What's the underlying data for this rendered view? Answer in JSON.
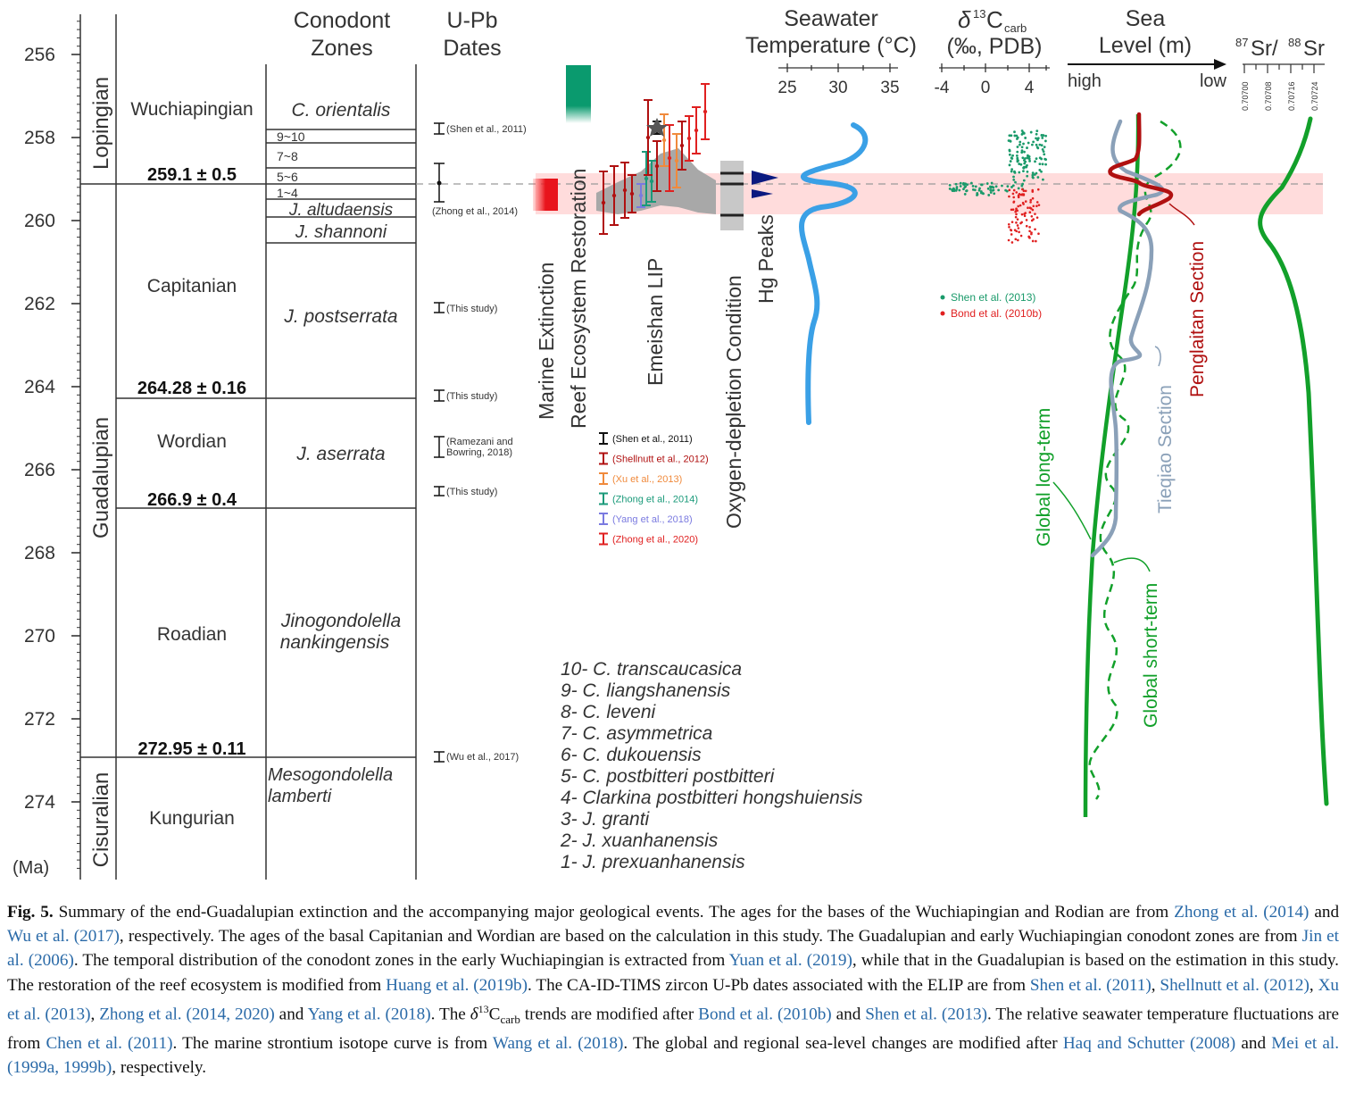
{
  "axis": {
    "unit": "(Ma)",
    "ticks": [
      "256",
      "258",
      "260",
      "262",
      "264",
      "266",
      "268",
      "270",
      "272",
      "274"
    ]
  },
  "epochs": [
    "Lopingian",
    "Guadalupian",
    "Cisuralian"
  ],
  "stages": [
    "Wuchiapingian",
    "Capitanian",
    "Wordian",
    "Roadian",
    "Kungurian"
  ],
  "boundary_ages": [
    "259.1 ± 0.5",
    "264.28 ± 0.16",
    "266.9 ± 0.4",
    "272.95 ± 0.11"
  ],
  "headers": {
    "conodont_line1": "Conodont",
    "conodont_line2": "Zones",
    "upb_line1": "U-Pb",
    "upb_line2": "Dates",
    "temp_line1": "Seawater",
    "temp_line2": "Temperature (°C)",
    "d13c_delta": "δ",
    "d13c_13": "13",
    "d13c_C": "C",
    "d13c_sub": "carb",
    "d13c_line2": "(‰, PDB)",
    "sea_line1": "Sea",
    "sea_line2": "Level (m)",
    "sea_high": "high",
    "sea_low": "low",
    "sr_87": "87",
    "sr_Sr1": "Sr/",
    "sr_88": "88",
    "sr_Sr2": "Sr"
  },
  "conodont_zones": {
    "orientalis": "C. orientalis",
    "z9_10": "9~10",
    "z7_8": "7~8",
    "z5_6": "5~6",
    "z1_4": "1~4",
    "altudaensis": "J. altudaensis",
    "shannoni": "J. shannoni",
    "postserrata": "J. postserrata",
    "aserrata": "J. aserrata",
    "jino1": "Jinogondolella",
    "jino2": "nankingensis",
    "meso1": "Mesogondolella",
    "meso2": "lamberti"
  },
  "upb_dates": {
    "shen2011": "(Shen et al., 2011)",
    "zhong2014": "(Zhong et al., 2014)",
    "this1": "(This study)",
    "this2": "(This study)",
    "ramezani1": "(Ramezani and",
    "ramezani2": "Bowring, 2018)",
    "this3": "(This study)",
    "wu2017": "(Wu et al., 2017)"
  },
  "columns": {
    "marine_extinction": "Marine Extinction",
    "reef": "Reef Ecosystem Restoration",
    "elip": "Emeishan LIP",
    "oxygen": "Oxygen-depletion Condition",
    "hg": "Hg Peaks"
  },
  "elip_legend": [
    {
      "label": "(Shen et al., 2011)",
      "color": "#111111"
    },
    {
      "label": "(Shellnutt et al., 2012)",
      "color": "#b01010"
    },
    {
      "label": "(Xu et al., 2013)",
      "color": "#f08a3c"
    },
    {
      "label": "(Zhong et al., 2014)",
      "color": "#1a9a7a"
    },
    {
      "label": "(Yang et al., 2018)",
      "color": "#7a7ae0"
    },
    {
      "label": "(Zhong et al., 2020)",
      "color": "#e02020"
    }
  ],
  "temp_ticks": [
    "25",
    "30",
    "35"
  ],
  "d13c_ticks": [
    "-4",
    "0",
    "4"
  ],
  "sr_ticks": [
    "0.70700",
    "0.70708",
    "0.70716",
    "0.70724"
  ],
  "d13c_legend": {
    "shen": "Shen et al. (2013)",
    "bond": "Bond et al. (2010b)"
  },
  "sea_labels": {
    "penglaitan": "Penglaitan Section",
    "tieqiao": "Tieqiao Section",
    "long_term": "Global long-term",
    "short_term": "Global short-term"
  },
  "zone_key": [
    "10- C. transcaucasica",
    "9- C. liangshanensis",
    "8- C. leveni",
    "7- C. asymmetrica",
    "6- C. dukouensis",
    "5- C. postbitteri postbitteri",
    "4- Clarkina postbitteri hongshuiensis",
    "3- J. granti",
    "2- J. xuanhanensis",
    "1- J. prexuanhanensis"
  ],
  "colors": {
    "extinction": "#e8141c",
    "reef": "#0a9a6e",
    "temperature": "#3aa0e6",
    "longterm": "#12a02a",
    "penglaitan": "#b01010",
    "tieqiao": "#8aa0b8",
    "hg": "#0b1a80",
    "highlight": "#ffd6d6"
  },
  "caption": {
    "label": "Fig. 5.",
    "s1": "Summary of the end-Guadalupian extinction and the accompanying major geological events. The ages for the bases of the Wuchiapingian and Rodian are from",
    "r1": "Zhong et al. (2014)",
    "s2": "and",
    "r2": "Wu et al. (2017)",
    "s3": ", respectively. The ages of the basal Capitanian and Wordian are based on the calculation in this study. The Guadalupian and early Wuchiapingian conodont zones are from",
    "r3": "Jin et al. (2006)",
    "s4": ". The temporal distribution of the conodont zones in the early Wuchiapingian is extracted from",
    "r4": "Yuan et al. (2019)",
    "s5": ", while that in the Guadalupian is based on the estimation in this study. The restoration of the reef ecosystem is modified from",
    "r5": "Huang et al. (2019b)",
    "s6": ". The CA-ID-TIMS zircon U-Pb dates associated with the ELIP are from",
    "r6": "Shen et al. (2011)",
    "s7": ",",
    "r7": "Shellnutt et al. (2012)",
    "s8": ",",
    "r8": "Xu et al. (2013)",
    "s9": ",",
    "r9": "Zhong et al. (2014, 2020)",
    "s10": "and",
    "r10": "Yang et al. (2018)",
    "s11a": ". The ",
    "s11d": "δ",
    "s11e": "13",
    "s11f": "C",
    "s11g": "carb",
    "s11h": " trends are modified after",
    "r11": "Bond et al. (2010b)",
    "s12": "and",
    "r12": "Shen et al. (2013)",
    "s13": ". The relative seawater temperature fluctuations are from",
    "r13": "Chen et al. (2011)",
    "s14": ". The marine strontium isotope curve is from",
    "r14": "Wang et al. (2018)",
    "s15": ". The global and regional sea-level changes are modified after",
    "r15": "Haq and Schutter (2008)",
    "s16": "and",
    "r16": "Mei et al. (1999a, 1999b)",
    "s17": ", respectively."
  }
}
